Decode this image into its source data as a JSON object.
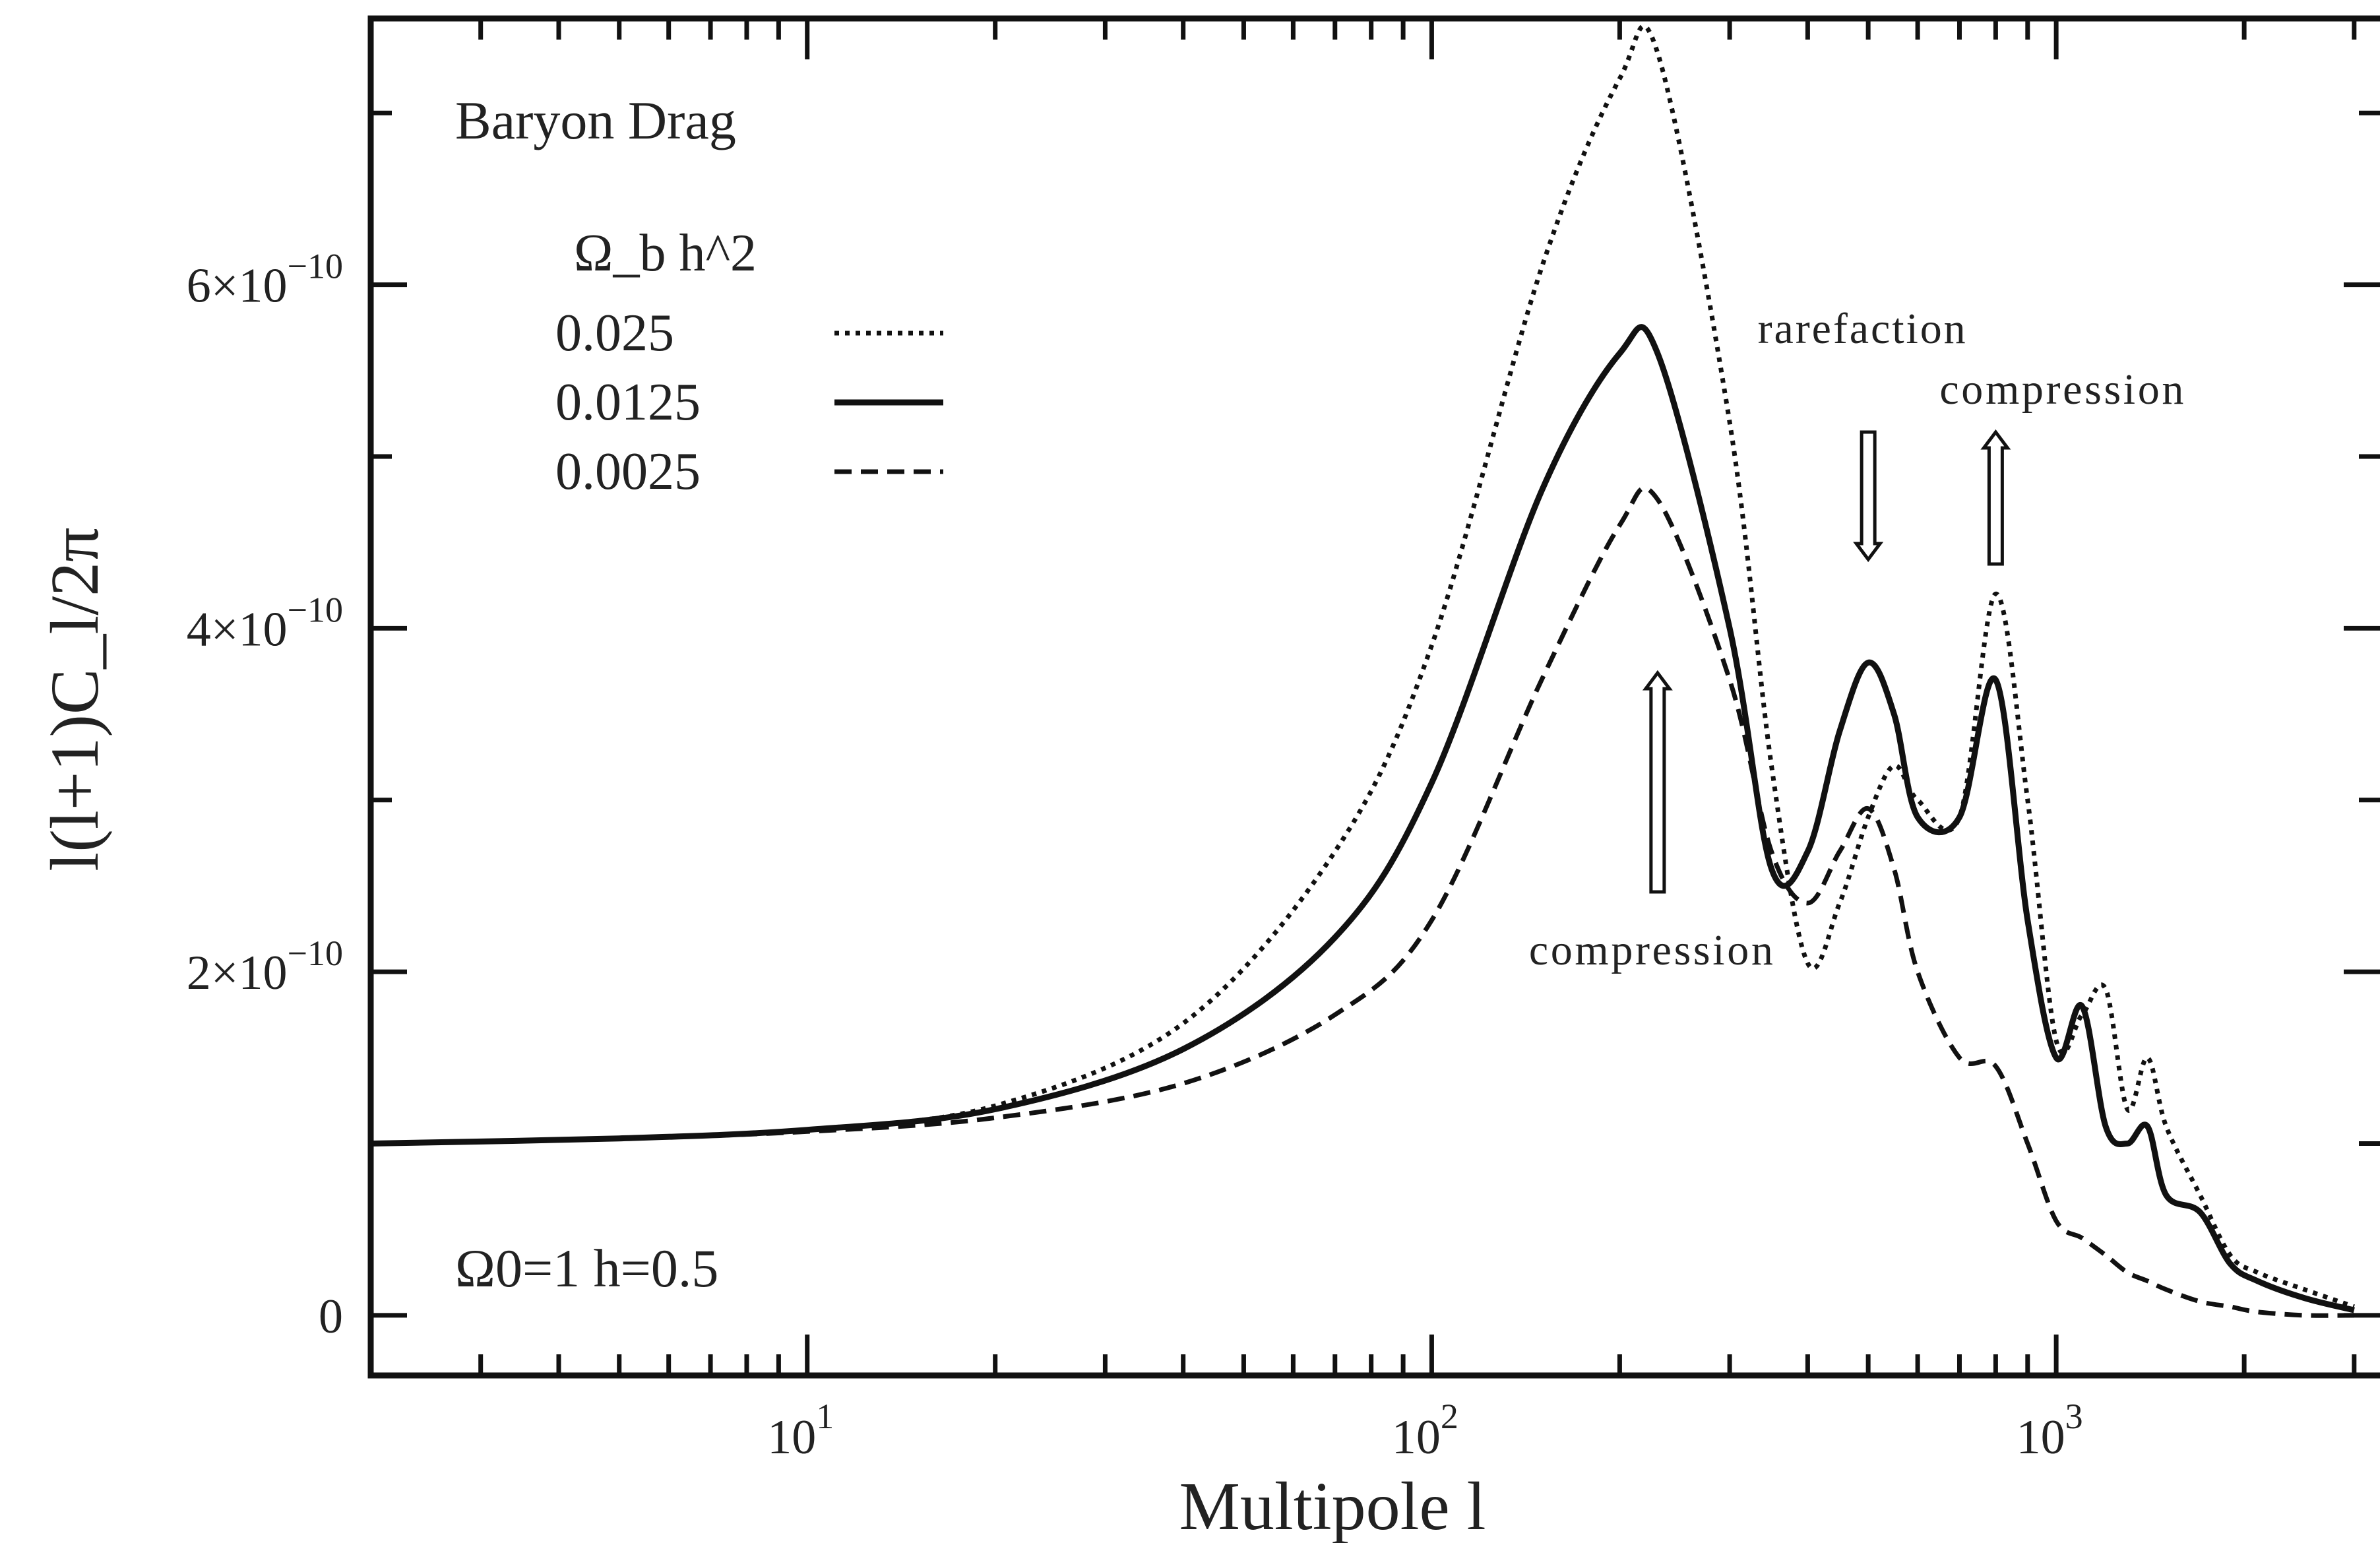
{
  "chart_data": {
    "type": "line",
    "title": "Baryon Drag",
    "xlabel": "Multipole l",
    "ylabel": "l(l+1)C_l/2π",
    "xscale": "log",
    "xlim": [
      2,
      3300
    ],
    "ylim": [
      -3.5e-11,
      7.55e-10
    ],
    "x_ticks": [
      {
        "value": 10,
        "base": "10",
        "exp": "1"
      },
      {
        "value": 100,
        "base": "10",
        "exp": "2"
      },
      {
        "value": 1000,
        "base": "10",
        "exp": "3"
      }
    ],
    "y_ticks": [
      {
        "value": 0,
        "mant": "0",
        "exp": ""
      },
      {
        "value": 2e-10,
        "mant": "2×10",
        "exp": "−10"
      },
      {
        "value": 4e-10,
        "mant": "4×10",
        "exp": "−10"
      },
      {
        "value": 6e-10,
        "mant": "6×10",
        "exp": "−10"
      }
    ],
    "legend": {
      "header": "Ω_b h^2",
      "placement": "top-left"
    },
    "params_text": "Ω0=1   h=0.5",
    "series": [
      {
        "name": "0.025",
        "style": "dotted",
        "x": [
          2,
          5,
          10,
          20,
          40,
          70,
          100,
          150,
          200,
          230,
          300,
          350,
          400,
          450,
          500,
          550,
          600,
          700,
          800,
          900,
          1000,
          1100,
          1200,
          1300,
          1400,
          1500,
          1700,
          1900,
          2100,
          2500,
          3000
        ],
        "y": [
          1e-10,
          1.03e-10,
          1.08e-10,
          1.22e-10,
          1.7e-10,
          2.7e-10,
          3.9e-10,
          6.1e-10,
          7.2e-10,
          7.35e-10,
          5.2e-10,
          3.2e-10,
          2.05e-10,
          2.4e-10,
          2.9e-10,
          3.2e-10,
          3e-10,
          2.9e-10,
          4.2e-10,
          3e-10,
          1.6e-10,
          1.75e-10,
          1.9e-10,
          1.2e-10,
          1.5e-10,
          1.1e-10,
          7e-11,
          3.5e-11,
          2.5e-11,
          1.5e-11,
          5e-12
        ]
      },
      {
        "name": "0.0125",
        "style": "solid",
        "x": [
          2,
          5,
          10,
          20,
          40,
          70,
          100,
          150,
          200,
          230,
          300,
          350,
          400,
          450,
          500,
          550,
          600,
          700,
          800,
          900,
          1000,
          1100,
          1200,
          1300,
          1400,
          1500,
          1700,
          1900,
          2100,
          2500,
          3000
        ],
        "y": [
          1e-10,
          1.03e-10,
          1.08e-10,
          1.2e-10,
          1.55e-10,
          2.2e-10,
          3.1e-10,
          4.8e-10,
          5.6e-10,
          5.6e-10,
          4e-10,
          2.6e-10,
          2.7e-10,
          3.4e-10,
          3.8e-10,
          3.5e-10,
          2.9e-10,
          2.9e-10,
          3.7e-10,
          2.3e-10,
          1.5e-10,
          1.8e-10,
          1.1e-10,
          1e-10,
          1.1e-10,
          7e-11,
          6e-11,
          3e-11,
          2e-11,
          1e-11,
          3e-12
        ]
      },
      {
        "name": "0.0025",
        "style": "dashed",
        "x": [
          2,
          5,
          10,
          20,
          40,
          70,
          100,
          150,
          200,
          230,
          300,
          350,
          400,
          450,
          500,
          550,
          600,
          700,
          800,
          900,
          1000,
          1100,
          1200,
          1300,
          1400,
          1500,
          1700,
          1900,
          2100,
          2500,
          3000
        ],
        "y": [
          1e-10,
          1.03e-10,
          1.07e-10,
          1.15e-10,
          1.35e-10,
          1.75e-10,
          2.3e-10,
          3.7e-10,
          4.6e-10,
          4.75e-10,
          3.7e-10,
          2.7e-10,
          2.4e-10,
          2.7e-10,
          2.95e-10,
          2.6e-10,
          2e-10,
          1.5e-10,
          1.45e-10,
          1e-10,
          5.5e-11,
          4.5e-11,
          3.5e-11,
          2.5e-11,
          2e-11,
          1.5e-11,
          8e-12,
          5e-12,
          2e-12,
          0.0,
          0.0
        ]
      }
    ],
    "annotations": [
      {
        "text": "compression",
        "x": 230,
        "y": 4e-10,
        "direction": "up"
      },
      {
        "text": "rarefaction",
        "x": 500,
        "y": 5.3e-10,
        "direction": "down"
      },
      {
        "text": "compression",
        "x": 800,
        "y": 5.1e-10,
        "direction": "up"
      }
    ]
  }
}
